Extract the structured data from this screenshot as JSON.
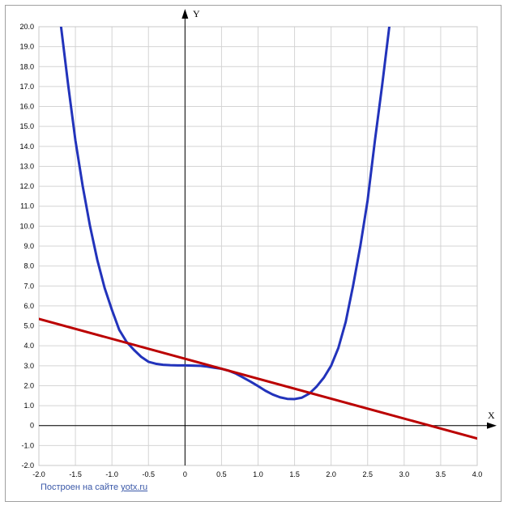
{
  "chart_data": {
    "type": "line",
    "xlabel": "X",
    "ylabel": "Y",
    "xlim": [
      -2.0,
      4.0
    ],
    "ylim": [
      -2.0,
      20.0
    ],
    "grid": true,
    "x_ticks": [
      "-2.0",
      "-1.5",
      "-1.0",
      "-0.5",
      "0",
      "0.5",
      "1.0",
      "1.5",
      "2.0",
      "2.5",
      "3.0",
      "3.5",
      "4.0"
    ],
    "y_ticks": [
      "-2.0",
      "-1.0",
      "0",
      "1.0",
      "2.0",
      "3.0",
      "4.0",
      "5.0",
      "6.0",
      "7.0",
      "8.0",
      "9.0",
      "10.0",
      "11.0",
      "12.0",
      "13.0",
      "14.0",
      "15.0",
      "16.0",
      "17.0",
      "18.0",
      "19.0",
      "20.0"
    ],
    "series": [
      {
        "color": "#2233bb",
        "x": [
          -1.7,
          -1.6,
          -1.5,
          -1.4,
          -1.3,
          -1.2,
          -1.1,
          -1.0,
          -0.9,
          -0.8,
          -0.7,
          -0.6,
          -0.5,
          -0.4,
          -0.3,
          -0.2,
          -0.1,
          0.0,
          0.1,
          0.2,
          0.3,
          0.4,
          0.5,
          0.6,
          0.7,
          0.8,
          0.9,
          1.0,
          1.1,
          1.2,
          1.3,
          1.4,
          1.5,
          1.6,
          1.7,
          1.8,
          1.9,
          2.0,
          2.1,
          2.2,
          2.3,
          2.4,
          2.5,
          2.6,
          2.7,
          2.8
        ],
        "y": [
          20.1,
          17.1,
          14.3,
          12.0,
          10.0,
          8.3,
          6.9,
          5.8,
          4.8,
          4.2,
          3.8,
          3.45,
          3.2,
          3.1,
          3.05,
          3.03,
          3.02,
          3.02,
          3.01,
          3.0,
          2.96,
          2.9,
          2.85,
          2.75,
          2.6,
          2.4,
          2.2,
          1.98,
          1.75,
          1.56,
          1.42,
          1.34,
          1.33,
          1.4,
          1.6,
          1.95,
          2.4,
          3.0,
          3.9,
          5.2,
          7.0,
          9.0,
          11.3,
          14.3,
          17.1,
          20.1
        ]
      },
      {
        "color": "#bb0000",
        "x": [
          -2.0,
          4.0
        ],
        "y": [
          5.35,
          -0.65
        ]
      }
    ]
  },
  "credit": {
    "prefix": "Построен на сайте ",
    "link": "yotx.ru"
  }
}
